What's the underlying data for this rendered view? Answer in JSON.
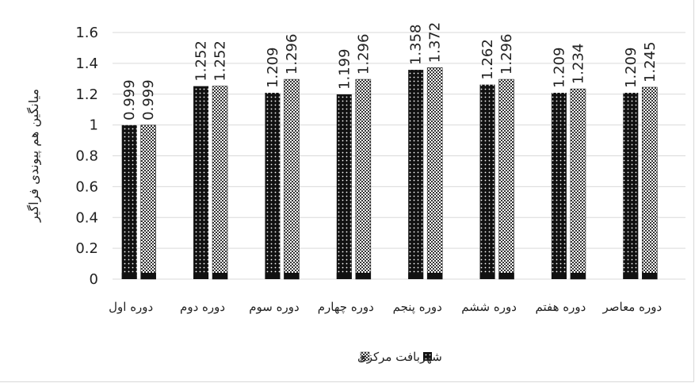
{
  "chart_data": {
    "type": "bar",
    "categories": [
      "دوره اول",
      "دوره دوم",
      "دوره سوم",
      "دوره چهارم",
      "دوره پنجم",
      "دوره ششم",
      "دوره هفتم",
      "دوره معاصر"
    ],
    "series": [
      {
        "name": "شهر",
        "values": [
          0.999,
          1.252,
          1.209,
          1.199,
          1.358,
          1.262,
          1.209,
          1.209
        ],
        "color": "#111111",
        "pattern": "dots"
      },
      {
        "name": "بافت مرکزی",
        "values": [
          0.999,
          1.252,
          1.296,
          1.296,
          1.372,
          1.296,
          1.234,
          1.245
        ],
        "color": "#444444",
        "pattern": "checker"
      }
    ],
    "data_labels": [
      [
        "0.999",
        "1.252",
        "1.209",
        "1.199",
        "1.358",
        "1.262",
        "1.209",
        "1.209"
      ],
      [
        "0.999",
        "1.252",
        "1.296",
        "1.296",
        "1.372",
        "1.296",
        "1.234",
        "1.245"
      ]
    ],
    "yticks": [
      "0",
      "0.2",
      "0.4",
      "0.6",
      "0.8",
      "1",
      "1.2",
      "1.4",
      "1.6"
    ],
    "ylim": [
      0,
      1.6
    ],
    "ylabel": "میانگین هم پیوندی فراگیر",
    "xlabel": "",
    "title": "",
    "grid": true,
    "legend_position": "bottom"
  }
}
